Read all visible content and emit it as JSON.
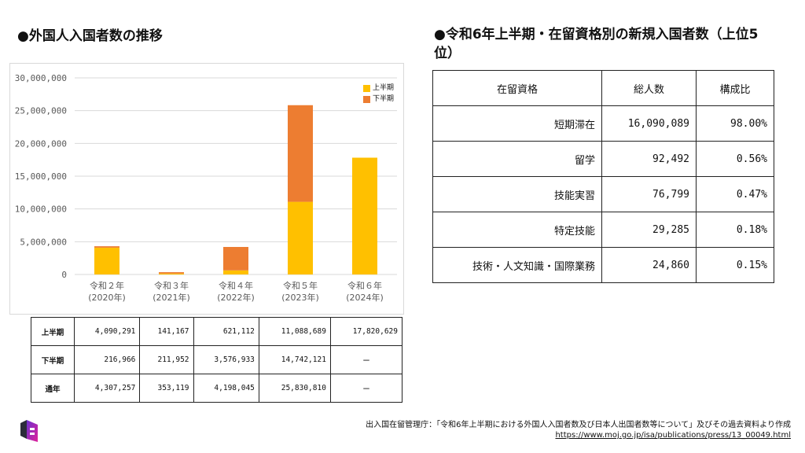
{
  "chart_heading": "●外国人入国者数の推移",
  "table_heading": "●令和6年上半期・在留資格別の新規入国者数（上位5位）",
  "chart_data": {
    "type": "bar",
    "stacked": true,
    "categories": [
      [
        "令和２年",
        "(2020年)"
      ],
      [
        "令和３年",
        "(2021年)"
      ],
      [
        "令和４年",
        "(2022年)"
      ],
      [
        "令和５年",
        "(2023年)"
      ],
      [
        "令和６年",
        "(2024年)"
      ]
    ],
    "series": [
      {
        "name": "上半期",
        "color": "#ffc000",
        "values": [
          4090291,
          141167,
          621112,
          11088689,
          17820629
        ]
      },
      {
        "name": "下半期",
        "color": "#ed7d31",
        "values": [
          216966,
          211952,
          3576933,
          14742121,
          null
        ]
      }
    ],
    "ylim": [
      0,
      30000000
    ],
    "yticks": [
      "0",
      "5,000,000",
      "10,000,000",
      "15,000,000",
      "20,000,000",
      "25,000,000",
      "30,000,000"
    ],
    "grid": true,
    "legend": "top-right"
  },
  "data_table": {
    "rows": [
      {
        "label": "上半期",
        "cells": [
          "4,090,291",
          "141,167",
          "621,112",
          "11,088,689",
          "17,820,629"
        ]
      },
      {
        "label": "下半期",
        "cells": [
          "216,966",
          "211,952",
          "3,576,933",
          "14,742,121",
          "ー"
        ]
      },
      {
        "label": "通年",
        "cells": [
          "4,307,257",
          "353,119",
          "4,198,045",
          "25,830,810",
          "ー"
        ]
      }
    ]
  },
  "status_table": {
    "headers": [
      "在留資格",
      "総人数",
      "構成比"
    ],
    "rows": [
      [
        "短期滞在",
        "16,090,089",
        "98.00%"
      ],
      [
        "留学",
        "92,492",
        "0.56%"
      ],
      [
        "技能実習",
        "76,799",
        "0.47%"
      ],
      [
        "特定技能",
        "29,285",
        "0.18%"
      ],
      [
        "技術・人文知識・国際業務",
        "24,860",
        "0.15%"
      ]
    ]
  },
  "source_text": "出入国在留管理庁：「令和6年上半期における外国人入国者数及び日本人出国者数等について」及びその過去資料より作成",
  "source_url": "https://www.moj.go.jp/isa/publications/press/13_00049.html",
  "logo_icon": "brand-logo-icon"
}
